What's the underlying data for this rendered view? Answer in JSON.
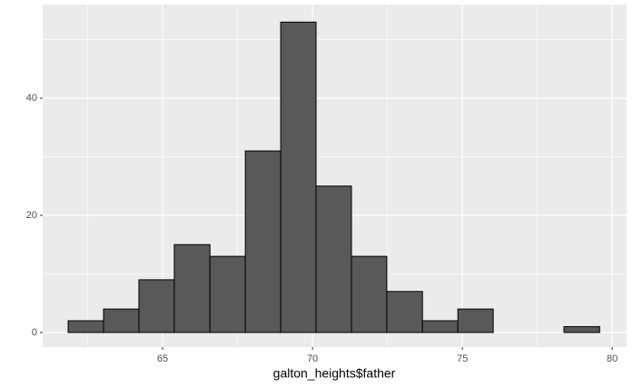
{
  "chart_data": {
    "type": "histogram",
    "xlabel": "galton_heights$father",
    "bins": [
      61.85,
      63.03,
      64.21,
      65.39,
      66.58,
      67.76,
      68.94,
      70.12,
      71.3,
      72.48,
      73.67,
      74.85,
      76.03,
      77.21,
      78.39,
      79.58
    ],
    "values": [
      2,
      4,
      9,
      15,
      13,
      31,
      53,
      25,
      13,
      7,
      2,
      4,
      0,
      0,
      1
    ],
    "color": "#595959",
    "xlim": [
      61,
      80.48
    ],
    "xticks": [
      65,
      70,
      75,
      80
    ],
    "ylim": [
      -2.5,
      56
    ],
    "yticks": [
      0,
      20,
      40
    ],
    "grid": true
  }
}
